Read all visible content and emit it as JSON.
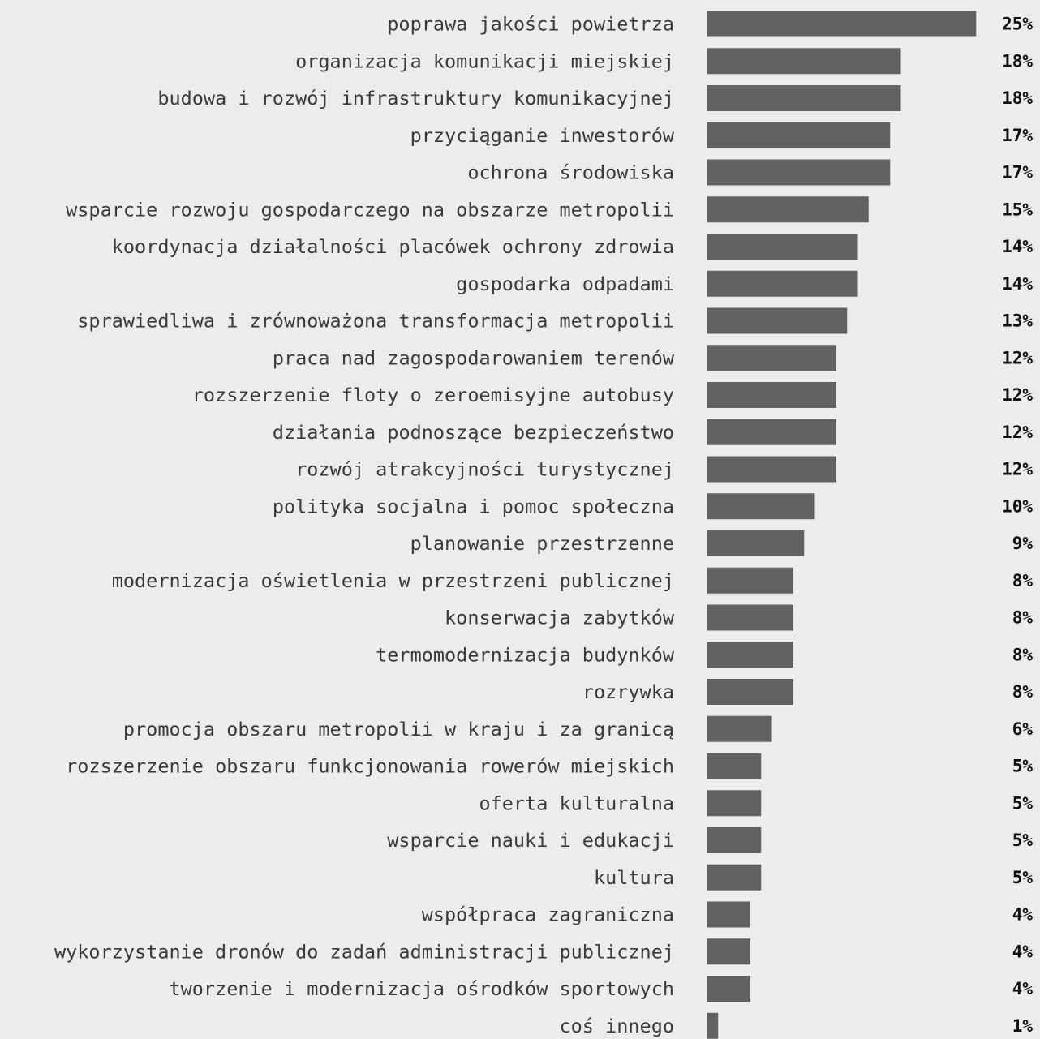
{
  "chart_data": {
    "type": "bar",
    "orientation": "horizontal",
    "unit": "%",
    "bar_color": "#626262",
    "background_color": "#ececec",
    "grid": false,
    "legend": "none",
    "xlim": [
      0,
      25
    ],
    "categories": [
      "poprawa jakości powietrza",
      "organizacja komunikacji miejskiej",
      "budowa i rozwój infrastruktury komunikacyjnej",
      "przyciąganie inwestorów",
      "ochrona środowiska",
      "wsparcie rozwoju gospodarczego na obszarze metropolii",
      "koordynacja działalności placówek ochrony zdrowia",
      "gospodarka odpadami",
      "sprawiedliwa i zrównoważona transformacja metropolii",
      "praca nad zagospodarowaniem terenów",
      "rozszerzenie floty o zeroemisyjne autobusy",
      "działania podnoszące bezpieczeństwo",
      "rozwój atrakcyjności turystycznej",
      "polityka socjalna i pomoc społeczna",
      "planowanie przestrzenne",
      "modernizacja oświetlenia w przestrzeni publicznej",
      "konserwacja zabytków",
      "termomodernizacja budynków",
      "rozrywka",
      "promocja obszaru metropolii w kraju i za granicą",
      "rozszerzenie obszaru funkcjonowania rowerów miejskich",
      "oferta kulturalna",
      "wsparcie nauki i edukacji",
      "kultura",
      "współpraca zagraniczna",
      "wykorzystanie dronów do zadań administracji publicznej",
      "tworzenie i modernizacja ośrodków sportowych",
      "coś innego"
    ],
    "values": [
      25,
      18,
      18,
      17,
      17,
      15,
      14,
      14,
      13,
      12,
      12,
      12,
      12,
      10,
      9,
      8,
      8,
      8,
      8,
      6,
      5,
      5,
      5,
      5,
      4,
      4,
      4,
      1
    ],
    "value_labels": [
      "25%",
      "18%",
      "18%",
      "17%",
      "17%",
      "15%",
      "14%",
      "14%",
      "13%",
      "12%",
      "12%",
      "12%",
      "12%",
      "10%",
      "9%",
      "8%",
      "8%",
      "8%",
      "8%",
      "6%",
      "5%",
      "5%",
      "5%",
      "5%",
      "4%",
      "4%",
      "4%",
      "1%"
    ]
  }
}
